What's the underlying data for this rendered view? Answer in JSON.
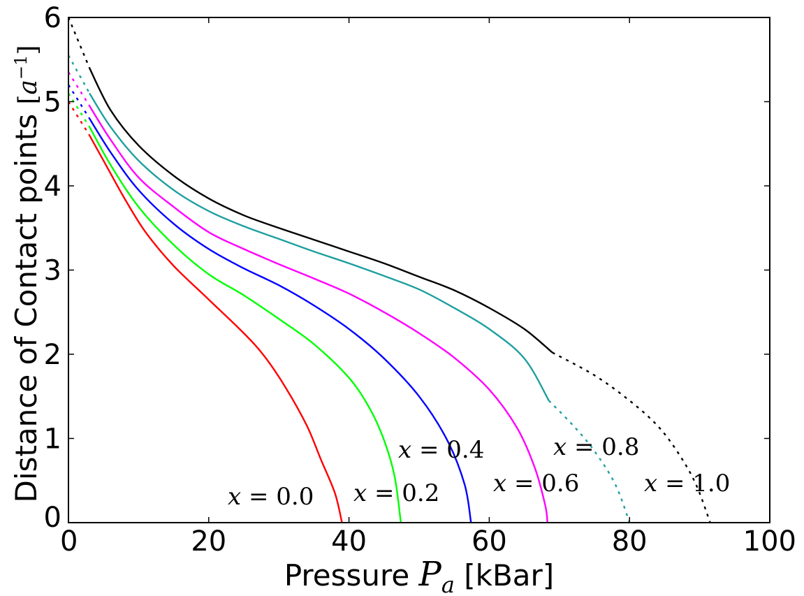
{
  "chart_data": {
    "type": "line",
    "xlabel": {
      "text": "Pressure",
      "symbol": "P",
      "subscript": "a",
      "unit": "[kBar]"
    },
    "ylabel": {
      "text": "Distance of Contact points",
      "unit_open": "[",
      "unit_symbol": "a",
      "unit_exponent": "−1",
      "unit_close": "]"
    },
    "xlim": [
      0,
      100
    ],
    "ylim": [
      0,
      6
    ],
    "xticks": [
      "0",
      "20",
      "40",
      "60",
      "80",
      "100"
    ],
    "yticks": [
      "0",
      "1",
      "2",
      "3",
      "4",
      "5",
      "6"
    ],
    "grid": false,
    "series": [
      {
        "name": "x = 0.0",
        "color": "#ff0000",
        "label": {
          "var": "x",
          "eq": " = ",
          "val": "0.0"
        },
        "solid": [
          [
            3,
            4.6
          ],
          [
            5,
            4.3
          ],
          [
            8,
            3.85
          ],
          [
            11,
            3.45
          ],
          [
            15,
            3.05
          ],
          [
            20,
            2.65
          ],
          [
            25,
            2.25
          ],
          [
            28,
            1.97
          ],
          [
            31,
            1.6
          ],
          [
            34,
            1.15
          ],
          [
            36,
            0.75
          ],
          [
            38,
            0.35
          ],
          [
            39,
            0.0
          ]
        ],
        "dashed_start": [
          [
            0,
            5.0
          ],
          [
            3,
            4.6
          ]
        ],
        "dashed_end": []
      },
      {
        "name": "x = 0.2",
        "color": "#00ff00",
        "label": {
          "var": "x",
          "eq": " = ",
          "val": "0.2"
        },
        "solid": [
          [
            3,
            4.7
          ],
          [
            6,
            4.25
          ],
          [
            10,
            3.75
          ],
          [
            15,
            3.3
          ],
          [
            20,
            2.95
          ],
          [
            25,
            2.7
          ],
          [
            30,
            2.42
          ],
          [
            35,
            2.12
          ],
          [
            40,
            1.72
          ],
          [
            43,
            1.35
          ],
          [
            45,
            0.98
          ],
          [
            46.5,
            0.55
          ],
          [
            47.4,
            0.0
          ]
        ],
        "dashed_start": [
          [
            0,
            5.1
          ],
          [
            3,
            4.7
          ]
        ],
        "dashed_end": []
      },
      {
        "name": "x = 0.4",
        "color": "#0000ff",
        "label": {
          "var": "x",
          "eq": " = ",
          "val": "0.4"
        },
        "solid": [
          [
            3,
            4.8
          ],
          [
            6,
            4.4
          ],
          [
            10,
            3.95
          ],
          [
            15,
            3.55
          ],
          [
            20,
            3.25
          ],
          [
            25,
            3.02
          ],
          [
            30,
            2.82
          ],
          [
            35,
            2.58
          ],
          [
            40,
            2.3
          ],
          [
            45,
            1.95
          ],
          [
            50,
            1.5
          ],
          [
            54,
            0.98
          ],
          [
            56.5,
            0.45
          ],
          [
            57.4,
            0.0
          ]
        ],
        "dashed_start": [
          [
            0,
            5.2
          ],
          [
            3,
            4.8
          ]
        ],
        "dashed_end": []
      },
      {
        "name": "x = 0.6",
        "color": "#ff00ff",
        "label": {
          "var": "x",
          "eq": " = ",
          "val": "0.6"
        },
        "solid": [
          [
            3,
            4.95
          ],
          [
            6,
            4.55
          ],
          [
            10,
            4.1
          ],
          [
            15,
            3.75
          ],
          [
            20,
            3.45
          ],
          [
            25,
            3.25
          ],
          [
            30,
            3.07
          ],
          [
            35,
            2.9
          ],
          [
            40,
            2.72
          ],
          [
            45,
            2.5
          ],
          [
            50,
            2.25
          ],
          [
            55,
            1.96
          ],
          [
            60,
            1.58
          ],
          [
            64,
            1.12
          ],
          [
            66.5,
            0.65
          ],
          [
            68,
            0.2
          ],
          [
            68.3,
            0.0
          ]
        ],
        "dashed_start": [
          [
            0,
            5.35
          ],
          [
            3,
            4.95
          ]
        ],
        "dashed_end": []
      },
      {
        "name": "x = 0.8",
        "color": "#1f9f9f",
        "label": {
          "var": "x",
          "eq": " = ",
          "val": "0.8"
        },
        "solid": [
          [
            3,
            5.1
          ],
          [
            6,
            4.7
          ],
          [
            10,
            4.3
          ],
          [
            15,
            3.95
          ],
          [
            20,
            3.7
          ],
          [
            25,
            3.52
          ],
          [
            30,
            3.37
          ],
          [
            35,
            3.22
          ],
          [
            40,
            3.08
          ],
          [
            45,
            2.93
          ],
          [
            50,
            2.77
          ],
          [
            55,
            2.55
          ],
          [
            60,
            2.3
          ],
          [
            65,
            1.95
          ],
          [
            68.5,
            1.45
          ]
        ],
        "dashed_start": [
          [
            0,
            5.55
          ],
          [
            3,
            5.1
          ]
        ],
        "dashed_end": [
          [
            68.5,
            1.45
          ],
          [
            72,
            1.15
          ],
          [
            75,
            0.85
          ],
          [
            78,
            0.45
          ],
          [
            80,
            0.0
          ]
        ]
      },
      {
        "name": "x = 1.0",
        "color": "#000000",
        "label": {
          "var": "x",
          "eq": " = ",
          "val": "1.0"
        },
        "solid": [
          [
            3,
            5.4
          ],
          [
            6,
            4.9
          ],
          [
            10,
            4.48
          ],
          [
            15,
            4.12
          ],
          [
            20,
            3.85
          ],
          [
            25,
            3.65
          ],
          [
            30,
            3.5
          ],
          [
            35,
            3.36
          ],
          [
            40,
            3.22
          ],
          [
            45,
            3.08
          ],
          [
            50,
            2.92
          ],
          [
            55,
            2.76
          ],
          [
            60,
            2.55
          ],
          [
            65,
            2.3
          ],
          [
            69,
            2.02
          ]
        ],
        "dashed_start": [
          [
            0,
            6.0
          ],
          [
            3,
            5.4
          ]
        ],
        "dashed_end": [
          [
            69,
            2.02
          ],
          [
            75,
            1.75
          ],
          [
            80,
            1.45
          ],
          [
            84,
            1.15
          ],
          [
            87,
            0.82
          ],
          [
            89.5,
            0.45
          ],
          [
            91.5,
            0.0
          ]
        ]
      }
    ]
  }
}
